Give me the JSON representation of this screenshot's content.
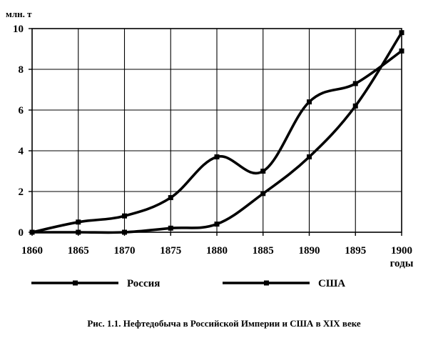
{
  "chart_data": {
    "type": "line",
    "title": "Рис. 1.1. Нефтедобыча в Российской Империи и США в XIX веке",
    "ylabel": "млн. т",
    "xlabel": "годы",
    "x": [
      1860,
      1865,
      1870,
      1875,
      1880,
      1885,
      1890,
      1895,
      1900
    ],
    "xlim": [
      1860,
      1900
    ],
    "ylim": [
      0,
      10
    ],
    "y_ticks": [
      0,
      2,
      4,
      6,
      8,
      10
    ],
    "x_tick_labels": [
      "1860",
      "1865",
      "1870",
      "1875",
      "1880",
      "1885",
      "1890",
      "1895",
      "1900"
    ],
    "y_tick_labels": [
      "0",
      "2",
      "4",
      "6",
      "8",
      "10"
    ],
    "grid": true,
    "legend_position": "bottom",
    "series": [
      {
        "name": "Россия",
        "values": [
          0,
          0.5,
          0.8,
          1.7,
          3.7,
          3.0,
          6.4,
          7.3,
          8.9
        ],
        "color": "#000000"
      },
      {
        "name": "США",
        "values": [
          0,
          0,
          0,
          0.2,
          0.4,
          1.9,
          3.7,
          6.2,
          9.8
        ],
        "color": "#000000"
      }
    ]
  }
}
